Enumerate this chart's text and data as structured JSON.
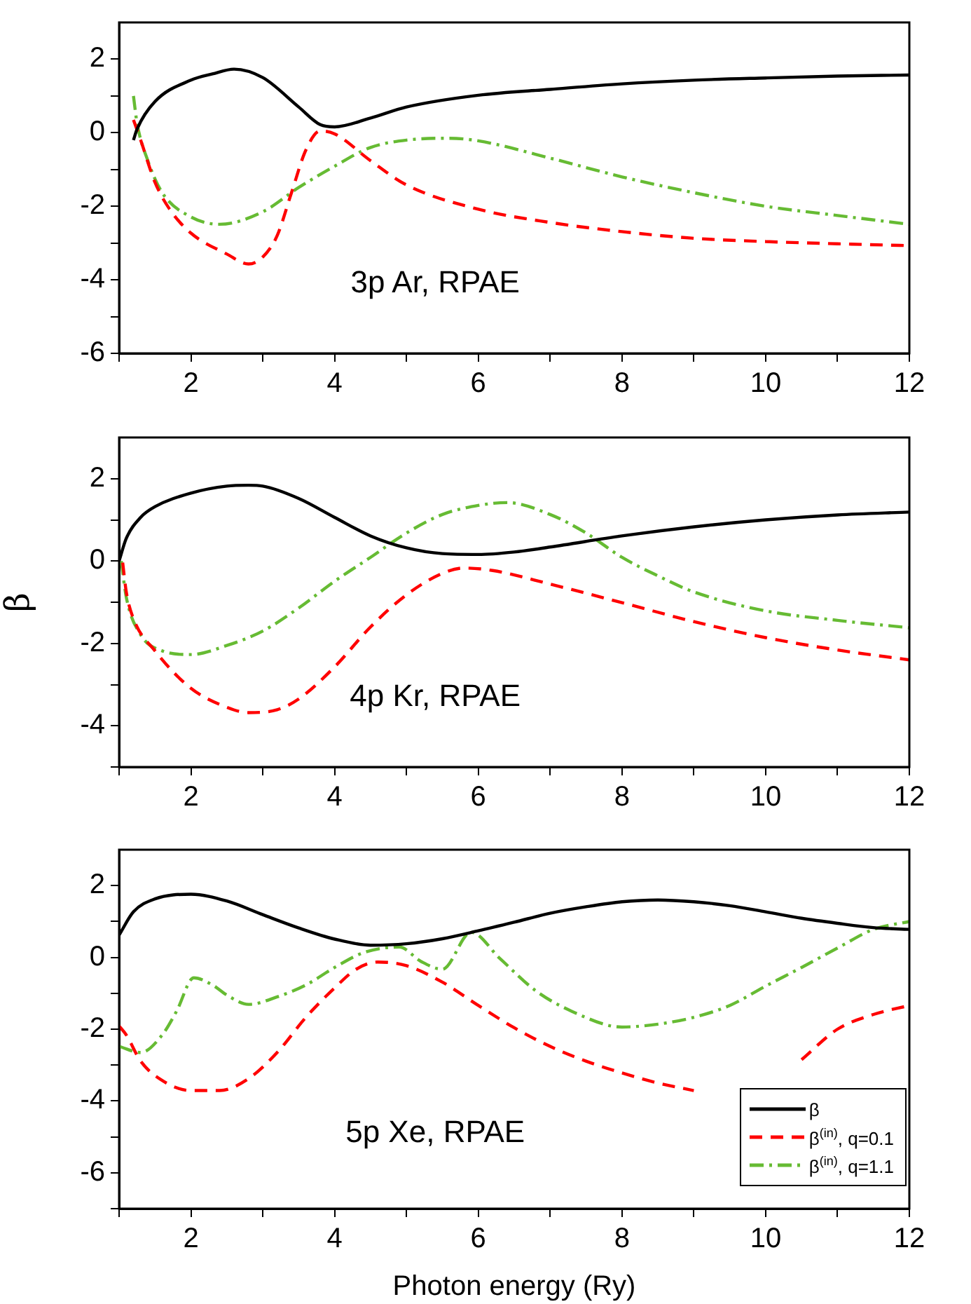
{
  "chart_data": [
    {
      "type": "line",
      "annotations": [
        "3p Ar, RPAE"
      ],
      "xlim": [
        1,
        12
      ],
      "ylim": [
        -6,
        3
      ],
      "xticks": [
        {
          "value": 1,
          "label": null
        },
        2,
        {
          "value": 3,
          "label": null
        },
        4,
        {
          "value": 5,
          "label": null
        },
        6,
        {
          "value": 7,
          "label": null
        },
        8,
        {
          "value": 9,
          "label": null
        },
        10,
        {
          "value": 11,
          "label": null
        },
        12
      ],
      "yticks": [
        -6,
        {
          "value": -5,
          "label": null
        },
        -4,
        {
          "value": -3,
          "label": null
        },
        -2,
        {
          "value": -1,
          "label": null
        },
        0,
        {
          "value": 1,
          "label": null
        },
        2
      ],
      "series": [
        {
          "color": "#000000",
          "line_style": "solid",
          "x": [
            1.2,
            1.25,
            1.5,
            2,
            2.3,
            2.6,
            3,
            3.5,
            3.8,
            4,
            4.5,
            5,
            6,
            7,
            8,
            9,
            10,
            11,
            12
          ],
          "values": [
            -0.2,
            0.1,
            0.85,
            1.43,
            1.6,
            1.73,
            1.5,
            0.7,
            0.22,
            0.16,
            0.4,
            0.7,
            1.02,
            1.18,
            1.33,
            1.43,
            1.49,
            1.54,
            1.57
          ]
        },
        {
          "color": "#ff0000",
          "line_style": "dashed",
          "x": [
            1.2,
            1.3,
            1.5,
            1.7,
            2,
            2.5,
            2.8,
            3,
            3.2,
            3.4,
            3.6,
            3.8,
            4,
            4.5,
            5,
            6,
            7,
            8,
            9,
            10,
            11,
            12
          ],
          "values": [
            0.35,
            -0.2,
            -1.35,
            -2.07,
            -2.73,
            -3.3,
            -3.57,
            -3.38,
            -2.8,
            -1.63,
            -0.47,
            0.05,
            -0.03,
            -0.76,
            -1.42,
            -2.08,
            -2.44,
            -2.69,
            -2.87,
            -2.96,
            -3.02,
            -3.07
          ]
        },
        {
          "color": "#66bb33",
          "line_style": "dashdot",
          "x": [
            1.2,
            1.25,
            1.4,
            1.6,
            2,
            2.4,
            3,
            3.5,
            4,
            4.5,
            5,
            5.6,
            6,
            7,
            8,
            9,
            10,
            11,
            12
          ],
          "values": [
            1.0,
            0.26,
            -0.76,
            -1.63,
            -2.29,
            -2.49,
            -2.15,
            -1.49,
            -0.91,
            -0.4,
            -0.2,
            -0.15,
            -0.22,
            -0.69,
            -1.2,
            -1.63,
            -2.0,
            -2.25,
            -2.49
          ]
        }
      ]
    },
    {
      "type": "line",
      "ylabel": "β",
      "annotations": [
        "4p Kr, RPAE"
      ],
      "xlim": [
        1,
        12
      ],
      "ylim": [
        -5,
        3
      ],
      "xticks": [
        {
          "value": 1,
          "label": null
        },
        2,
        {
          "value": 3,
          "label": null
        },
        4,
        {
          "value": 5,
          "label": null
        },
        6,
        {
          "value": 7,
          "label": null
        },
        8,
        {
          "value": 9,
          "label": null
        },
        10,
        {
          "value": 11,
          "label": null
        },
        12
      ],
      "yticks": [
        {
          "value": -5,
          "label": null
        },
        -4,
        {
          "value": -3,
          "label": null
        },
        -2,
        {
          "value": -1,
          "label": null
        },
        0,
        {
          "value": 1,
          "label": null
        },
        2
      ],
      "series": [
        {
          "color": "#000000",
          "line_style": "solid",
          "x": [
            1,
            1.1,
            1.3,
            1.5,
            2,
            2.5,
            2.8,
            3,
            3.5,
            4,
            4.5,
            5,
            5.5,
            6,
            6.5,
            7,
            8,
            9,
            10,
            11,
            12
          ],
          "values": [
            0,
            0.55,
            1.06,
            1.32,
            1.65,
            1.82,
            1.84,
            1.82,
            1.52,
            1.06,
            0.61,
            0.32,
            0.18,
            0.16,
            0.22,
            0.34,
            0.61,
            0.83,
            1.0,
            1.12,
            1.19
          ]
        },
        {
          "color": "#ff0000",
          "line_style": "dashed",
          "x": [
            1.05,
            1.1,
            1.2,
            1.5,
            2,
            2.5,
            2.8,
            3.2,
            3.5,
            4,
            4.5,
            5,
            5.5,
            5.8,
            6.2,
            7,
            8,
            9,
            10,
            11,
            12
          ],
          "values": [
            -0.04,
            -0.75,
            -1.4,
            -2.18,
            -3.09,
            -3.55,
            -3.68,
            -3.61,
            -3.35,
            -2.57,
            -1.6,
            -0.82,
            -0.3,
            -0.17,
            -0.23,
            -0.56,
            -1.01,
            -1.47,
            -1.86,
            -2.16,
            -2.4
          ]
        },
        {
          "color": "#66bb33",
          "line_style": "dashdot",
          "x": [
            1.03,
            1.1,
            1.3,
            1.6,
            2,
            2.5,
            3,
            3.5,
            4,
            4.5,
            5,
            5.5,
            6,
            6.4,
            7,
            7.5,
            8,
            8.5,
            9,
            10,
            11,
            12
          ],
          "values": [
            0,
            -0.88,
            -1.79,
            -2.18,
            -2.27,
            -2.05,
            -1.7,
            -1.14,
            -0.49,
            0.09,
            0.68,
            1.13,
            1.35,
            1.42,
            1.13,
            0.68,
            0.09,
            -0.36,
            -0.75,
            -1.21,
            -1.44,
            -1.62
          ]
        }
      ]
    },
    {
      "type": "line",
      "xlabel": "Photon energy (Ry)",
      "annotations": [
        "5p Xe, RPAE"
      ],
      "legend": "bottom right",
      "xlim": [
        1,
        12
      ],
      "ylim": [
        -7,
        3
      ],
      "xticks": [
        {
          "value": 1,
          "label": null
        },
        2,
        {
          "value": 3,
          "label": null
        },
        4,
        {
          "value": 5,
          "label": null
        },
        6,
        {
          "value": 7,
          "label": null
        },
        8,
        {
          "value": 9,
          "label": null
        },
        10,
        {
          "value": 11,
          "label": null
        },
        12
      ],
      "yticks": [
        {
          "value": -7,
          "label": null
        },
        -6,
        {
          "value": -5,
          "label": null
        },
        -4,
        {
          "value": -3,
          "label": null
        },
        -2,
        {
          "value": -1,
          "label": null
        },
        0,
        {
          "value": 1,
          "label": null
        },
        2
      ],
      "series": [
        {
          "name": "β",
          "color": "#000000",
          "line_style": "solid",
          "x": [
            1,
            1.2,
            1.5,
            2,
            2.5,
            3,
            3.5,
            4,
            4.5,
            5,
            5.5,
            6,
            6.5,
            7,
            7.5,
            8,
            8.5,
            9,
            9.5,
            10,
            10.5,
            11,
            11.5,
            12
          ],
          "values": [
            0.62,
            1.27,
            1.63,
            1.76,
            1.57,
            1.19,
            0.82,
            0.51,
            0.34,
            0.38,
            0.52,
            0.74,
            0.98,
            1.23,
            1.41,
            1.55,
            1.6,
            1.55,
            1.44,
            1.27,
            1.09,
            0.95,
            0.83,
            0.78
          ]
        },
        {
          "name": "β$^{(in)}$, q=0.1",
          "color": "#ff0000",
          "line_style": "dashed",
          "x": [
            1,
            1.1,
            1.3,
            1.6,
            2,
            2.4,
            2.8,
            3.2,
            3.6,
            4,
            4.3,
            4.6,
            5,
            5.5,
            6,
            6.5,
            7,
            7.5,
            8,
            8.5,
            9,
            9.5,
            10,
            10.5,
            11,
            11.5,
            12
          ],
          "values": [
            -1.91,
            -2.16,
            -2.89,
            -3.43,
            -3.71,
            -3.71,
            -3.38,
            -2.65,
            -1.67,
            -0.85,
            -0.33,
            -0.13,
            -0.23,
            -0.69,
            -1.34,
            -1.96,
            -2.48,
            -2.89,
            -3.22,
            -3.5,
            -3.71,
            null,
            null,
            -2.85,
            -2.0,
            -1.59,
            -1.34
          ]
        },
        {
          "name": "β$^{(in)}$, q=1.1",
          "color": "#66bb33",
          "line_style": "dashdot",
          "x": [
            1,
            1.3,
            1.6,
            1.8,
            2.04,
            2.3,
            2.5,
            2.8,
            3.2,
            3.6,
            4,
            4.4,
            4.9,
            5.2,
            5.5,
            5.9,
            6.3,
            6.8,
            7.3,
            8,
            8.5,
            9,
            9.5,
            10,
            10.5,
            11,
            11.5,
            12
          ],
          "values": [
            -2.48,
            -2.65,
            -2.16,
            -1.5,
            -0.57,
            -0.77,
            -1.05,
            -1.31,
            -1.1,
            -0.77,
            -0.28,
            0.13,
            0.29,
            -0.11,
            -0.33,
            0.7,
            -0.03,
            -0.93,
            -1.5,
            -1.94,
            -1.86,
            -1.67,
            -1.34,
            -0.8,
            -0.28,
            0.26,
            0.78,
            1.0
          ]
        }
      ]
    }
  ]
}
